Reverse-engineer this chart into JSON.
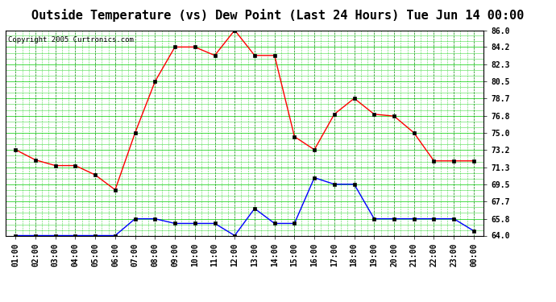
{
  "title": "Outside Temperature (vs) Dew Point (Last 24 Hours) Tue Jun 14 00:00",
  "copyright": "Copyright 2005 Curtronics.com",
  "x_labels": [
    "01:00",
    "02:00",
    "03:00",
    "04:00",
    "05:00",
    "06:00",
    "07:00",
    "08:00",
    "09:00",
    "10:00",
    "11:00",
    "12:00",
    "13:00",
    "14:00",
    "15:00",
    "16:00",
    "17:00",
    "18:00",
    "19:00",
    "20:00",
    "21:00",
    "22:00",
    "23:00",
    "00:00"
  ],
  "temp_data": [
    73.2,
    72.1,
    71.5,
    71.5,
    70.5,
    68.9,
    75.0,
    80.5,
    84.2,
    84.2,
    83.3,
    86.0,
    83.3,
    83.3,
    74.6,
    73.2,
    77.0,
    78.7,
    77.0,
    76.8,
    75.0,
    72.0,
    72.0,
    72.0
  ],
  "dew_data": [
    64.0,
    64.0,
    64.0,
    64.0,
    64.0,
    64.0,
    65.8,
    65.8,
    65.3,
    65.3,
    65.3,
    64.0,
    66.9,
    65.3,
    65.3,
    70.2,
    69.5,
    69.5,
    65.8,
    65.8,
    65.8,
    65.8,
    65.8,
    64.5
  ],
  "temp_color": "#ff0000",
  "dew_color": "#0000ff",
  "bg_color": "#ffffff",
  "plot_bg_color": "#ffffff",
  "hgrid_color": "#00cc00",
  "vgrid_color": "#008800",
  "ylim": [
    64.0,
    86.0
  ],
  "yticks": [
    64.0,
    65.8,
    67.7,
    69.5,
    71.3,
    73.2,
    75.0,
    76.8,
    78.7,
    80.5,
    82.3,
    84.2,
    86.0
  ],
  "title_fontsize": 11,
  "tick_fontsize": 7,
  "copyright_fontsize": 6.5
}
